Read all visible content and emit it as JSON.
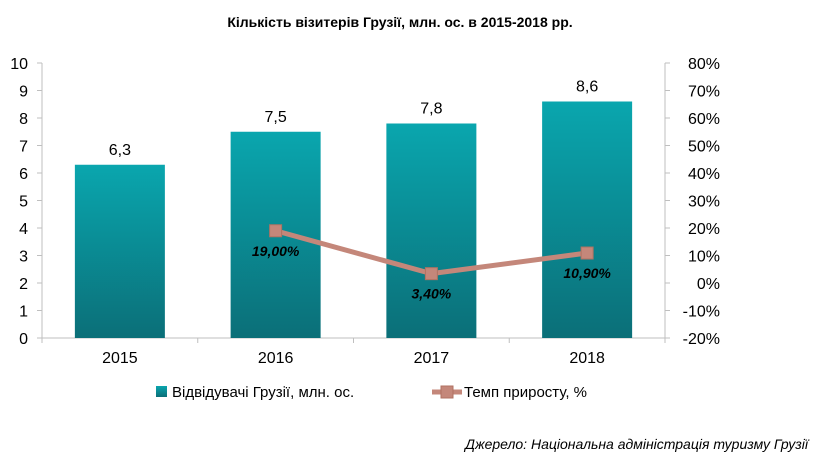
{
  "chart_data": {
    "type": "bar",
    "title": "Кількість візитерів Грузії, млн. ос. в 2015-2018 рр.",
    "categories": [
      "2015",
      "2016",
      "2017",
      "2018"
    ],
    "series": [
      {
        "name": "Відвідувачі Грузії, млн. ос.",
        "kind": "bar",
        "axis": "left",
        "color": "#0e8f98",
        "values": [
          6.3,
          7.5,
          7.8,
          8.6
        ],
        "labels": [
          "6,3",
          "7,5",
          "7,8",
          "8,6"
        ]
      },
      {
        "name": "Темп приросту, %",
        "kind": "line",
        "axis": "right",
        "color": "#c4877a",
        "values": [
          null,
          19.0,
          3.4,
          10.9
        ],
        "labels": [
          "",
          "19,00%",
          "3,40%",
          "10,90%"
        ]
      }
    ],
    "y_left": {
      "min": 0,
      "max": 10,
      "step": 1,
      "ticks": [
        "0",
        "1",
        "2",
        "3",
        "4",
        "5",
        "6",
        "7",
        "8",
        "9",
        "10"
      ]
    },
    "y_right": {
      "min": -20,
      "max": 80,
      "step": 10,
      "ticks": [
        "-20%",
        "-10%",
        "0%",
        "10%",
        "20%",
        "30%",
        "40%",
        "50%",
        "60%",
        "70%",
        "80%"
      ]
    },
    "grid": false,
    "legend": "bottom"
  },
  "source": "Джерело: Національна адміністрація туризму Грузії"
}
